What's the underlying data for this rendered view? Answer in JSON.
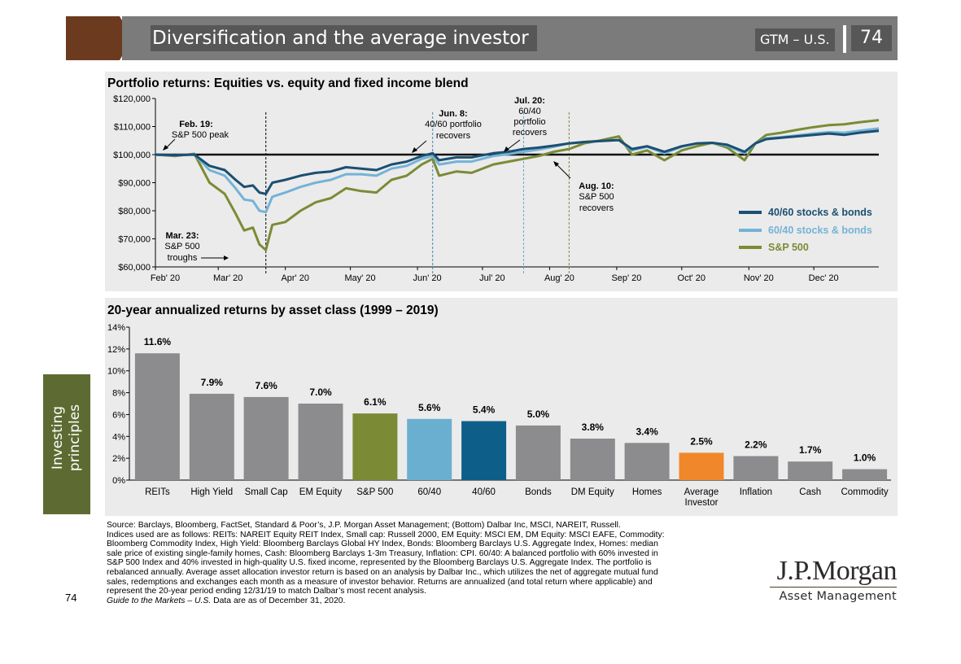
{
  "header": {
    "title": "Diversification and the average investor",
    "section": "GTM – U.S.",
    "page": "74"
  },
  "sidebar": {
    "label_line1": "Investing",
    "label_line2": "principles"
  },
  "top_chart": {
    "title": "Portfolio returns: Equities vs. equity and fixed income blend"
  },
  "bottom_chart": {
    "title": "20-year annualized returns by asset class (1999 – 2019)"
  },
  "chart_data": [
    {
      "type": "line",
      "title": "Portfolio returns: Equities vs. equity and fixed income blend",
      "ylim": [
        60000,
        120000
      ],
      "y_ticks": [
        "$60,000",
        "$70,000",
        "$80,000",
        "$90,000",
        "$100,000",
        "$110,000",
        "$120,000"
      ],
      "x_ticks": [
        "Feb' 20",
        "Mar' 20",
        "Apr' 20",
        "May' 20",
        "Jun' 20",
        "Jul' 20",
        "Aug' 20",
        "Sep' 20",
        "Oct' 20",
        "Nov' 20",
        "Dec' 20"
      ],
      "baseline": 100000,
      "x": [
        "2020-02-01",
        "2020-02-10",
        "2020-02-19",
        "2020-02-26",
        "2020-03-04",
        "2020-03-09",
        "2020-03-13",
        "2020-03-17",
        "2020-03-20",
        "2020-03-23",
        "2020-03-26",
        "2020-04-01",
        "2020-04-08",
        "2020-04-15",
        "2020-04-22",
        "2020-04-29",
        "2020-05-06",
        "2020-05-13",
        "2020-05-20",
        "2020-05-27",
        "2020-06-03",
        "2020-06-08",
        "2020-06-11",
        "2020-06-19",
        "2020-06-26",
        "2020-07-06",
        "2020-07-13",
        "2020-07-20",
        "2020-07-27",
        "2020-08-03",
        "2020-08-10",
        "2020-08-17",
        "2020-08-24",
        "2020-09-02",
        "2020-09-08",
        "2020-09-15",
        "2020-09-23",
        "2020-10-01",
        "2020-10-08",
        "2020-10-15",
        "2020-10-22",
        "2020-10-30",
        "2020-11-04",
        "2020-11-09",
        "2020-11-16",
        "2020-11-23",
        "2020-12-01",
        "2020-12-08",
        "2020-12-15",
        "2020-12-22",
        "2020-12-31"
      ],
      "series": [
        {
          "name": "40/60 stocks & bonds",
          "color": "#1b4f72",
          "values": [
            100000,
            99800,
            100000,
            96000,
            94500,
            91000,
            88500,
            89000,
            86500,
            86000,
            90000,
            91000,
            92500,
            93500,
            94000,
            95500,
            95000,
            94500,
            96500,
            97500,
            99500,
            100500,
            98000,
            99000,
            99000,
            100500,
            101000,
            102000,
            102500,
            103200,
            104000,
            104500,
            104800,
            105200,
            102000,
            103000,
            101000,
            103000,
            104000,
            104200,
            103500,
            101000,
            104000,
            105500,
            106000,
            106500,
            107000,
            107500,
            107000,
            107800,
            108500
          ]
        },
        {
          "name": "60/40 stocks & bonds",
          "color": "#74b3d6",
          "values": [
            100000,
            99700,
            100100,
            94500,
            92500,
            88000,
            84000,
            83500,
            80000,
            79500,
            85000,
            86500,
            88500,
            90000,
            91000,
            93000,
            93000,
            92500,
            95000,
            96000,
            98500,
            99500,
            96500,
            97500,
            97500,
            99500,
            100200,
            101000,
            101800,
            102800,
            104000,
            104500,
            104800,
            105200,
            101500,
            102800,
            100500,
            102800,
            104000,
            104200,
            103200,
            100500,
            104000,
            105800,
            106200,
            106800,
            107500,
            108000,
            107800,
            108500,
            109300
          ]
        },
        {
          "name": "S&P 500",
          "color": "#7b8b35",
          "values": [
            100000,
            99500,
            100300,
            90000,
            86000,
            79000,
            73000,
            74000,
            68000,
            66000,
            75000,
            76000,
            80000,
            83000,
            84500,
            88000,
            87000,
            86500,
            91000,
            92500,
            96500,
            98500,
            92500,
            94000,
            93500,
            96500,
            97500,
            98500,
            99500,
            101000,
            102000,
            104000,
            105000,
            106500,
            100000,
            101500,
            98000,
            101500,
            103000,
            104200,
            102500,
            98000,
            104000,
            107000,
            107800,
            108800,
            109800,
            110500,
            110800,
            111500,
            112300
          ]
        }
      ],
      "annotations": [
        "Feb. 19: S&P 500 peak",
        "Mar. 23: S&P 500 troughs",
        "Jun. 8: 40/60 portfolio recovers",
        "Jul. 20: 60/40 portfolio recovers",
        "Aug. 10: S&P 500 recovers"
      ],
      "annot_text": {
        "a1_l1": "Feb. 19:",
        "a1_l2": "S&P 500 peak",
        "a2_l1": "Mar. 23:",
        "a2_l2": "S&P 500",
        "a2_l3": "troughs",
        "a3_l1": "Jun. 8:",
        "a3_l2": "40/60 portfolio",
        "a3_l3": "recovers",
        "a4_l1": "Jul. 20:",
        "a4_l2": "60/40",
        "a4_l3": "portfolio",
        "a4_l4": "recovers",
        "a5_l1": "Aug. 10:",
        "a5_l2": "S&P 500",
        "a5_l3": "recovers"
      },
      "legend_position": "right"
    },
    {
      "type": "bar",
      "title": "20-year annualized returns by asset class (1999 – 2019)",
      "ylim": [
        0,
        14
      ],
      "y_ticks": [
        "0%",
        "2%",
        "4%",
        "6%",
        "8%",
        "10%",
        "12%",
        "14%"
      ],
      "categories": [
        "REITs",
        "High Yield",
        "Small Cap",
        "EM Equity",
        "S&P 500",
        "60/40",
        "40/60",
        "Bonds",
        "DM Equity",
        "Homes",
        "Average Investor",
        "Inflation",
        "Cash",
        "Commodity"
      ],
      "values": [
        11.6,
        7.9,
        7.6,
        7.0,
        6.1,
        5.6,
        5.4,
        5.0,
        3.8,
        3.4,
        2.5,
        2.2,
        1.7,
        1.0
      ],
      "labels": [
        "11.6%",
        "7.9%",
        "7.6%",
        "7.0%",
        "6.1%",
        "5.6%",
        "5.4%",
        "5.0%",
        "3.8%",
        "3.4%",
        "2.5%",
        "2.2%",
        "1.7%",
        "1.0%"
      ],
      "colors": [
        "#8c8c8e",
        "#8c8c8e",
        "#8c8c8e",
        "#8c8c8e",
        "#7b8b35",
        "#6bafd0",
        "#0d5f8a",
        "#8c8c8e",
        "#8c8c8e",
        "#8c8c8e",
        "#f0882b",
        "#8c8c8e",
        "#8c8c8e",
        "#8c8c8e"
      ]
    }
  ],
  "footer": {
    "lines": [
      "Source: Barclays, Bloomberg, FactSet, Standard & Poor’s, J.P. Morgan Asset Management; (Bottom) Dalbar Inc, MSCI, NAREIT, Russell.",
      "Indices used are as follows: REITs: NAREIT Equity REIT Index, Small cap: Russell 2000, EM Equity: MSCI EM, DM Equity: MSCI EAFE, Commodity:",
      "Bloomberg Commodity Index, High Yield: Bloomberg Barclays Global HY Index, Bonds: Bloomberg Barclays U.S. Aggregate Index, Homes: median",
      "sale price of existing single-family homes, Cash: Bloomberg Barclays 1-3m Treasury, Inflation: CPI. 60/40: A balanced portfolio with 60% invested in",
      "S&P 500 Index and 40% invested in high-quality U.S. fixed income, represented by the Bloomberg Barclays U.S. Aggregate Index. The portfolio is",
      "rebalanced annually. Average asset allocation investor return is based on an analysis by Dalbar Inc., which utilizes the net of aggregate mutual fund",
      "sales, redemptions and exchanges each month as a measure of investor behavior. Returns are annualized (and total return where applicable) and",
      "represent the 20-year period ending 12/31/19 to match Dalbar’s most recent analysis."
    ],
    "guide_italic": "Guide to the Markets – U.S.",
    "guide_rest": " Data are as of December 31, 2020.",
    "page_number": "74"
  },
  "logo": {
    "main": "J.P.Morgan",
    "sub": "Asset Management"
  }
}
